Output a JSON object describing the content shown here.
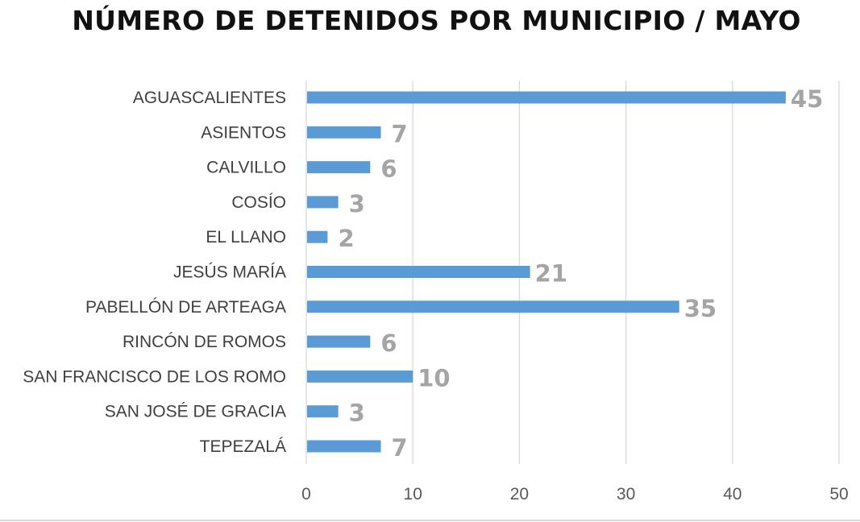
{
  "chart_data": {
    "type": "bar",
    "orientation": "horizontal",
    "title": "NÚMERO DE DETENIDOS POR MUNICIPIO / MAYO",
    "xlabel": "",
    "ylabel": "",
    "categories": [
      "AGUASCALIENTES",
      "ASIENTOS",
      "CALVILLO",
      "COSÍO",
      "EL LLANO",
      "JESÚS MARÍA",
      "PABELLÓN DE ARTEAGA",
      "RINCÓN DE ROMOS",
      "SAN FRANCISCO DE LOS ROMO",
      "SAN JOSÉ DE GRACIA",
      "TEPEZALÁ"
    ],
    "values": [
      45,
      7,
      6,
      3,
      2,
      21,
      35,
      6,
      10,
      3,
      7
    ],
    "xlim": [
      0,
      50
    ],
    "xticks": [
      0,
      10,
      20,
      30,
      40,
      50
    ],
    "grid": true,
    "legend": "none",
    "colors": {
      "bar": "#5b9bd5",
      "label": "#a5a5a5",
      "grid": "#d9d9d9"
    }
  }
}
